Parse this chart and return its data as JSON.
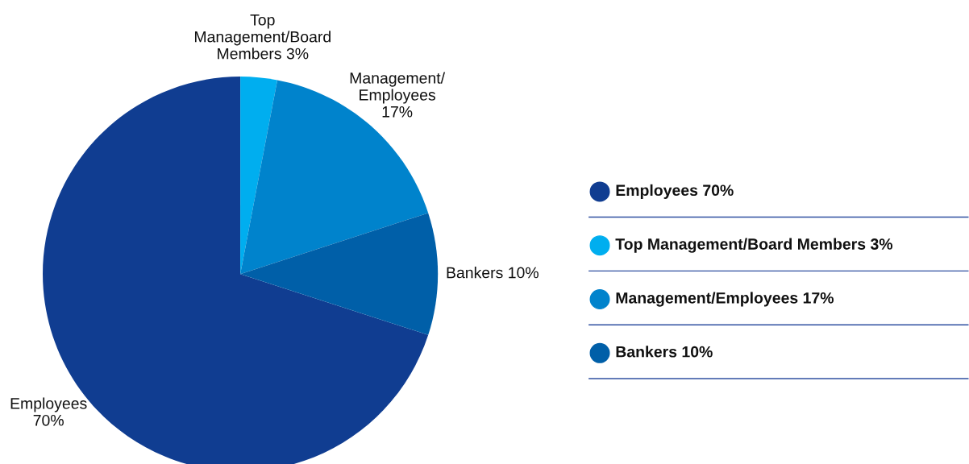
{
  "chart_data": {
    "type": "pie",
    "categories": [
      "Employees",
      "Top Management/Board Members",
      "Management/Employees",
      "Bankers"
    ],
    "values": [
      70,
      3,
      17,
      10
    ],
    "value_labels": [
      "70%",
      "3%",
      "17%",
      "10%"
    ],
    "colors": [
      "#103d91",
      "#00aeef",
      "#0083cc",
      "#005fa8"
    ],
    "annotations": [
      "Employees\n70%",
      "Top\nManagement/Board\nMembers 3%",
      "Management/\nEmployees\n17%",
      "Bankers 10%"
    ],
    "legend": "right"
  }
}
